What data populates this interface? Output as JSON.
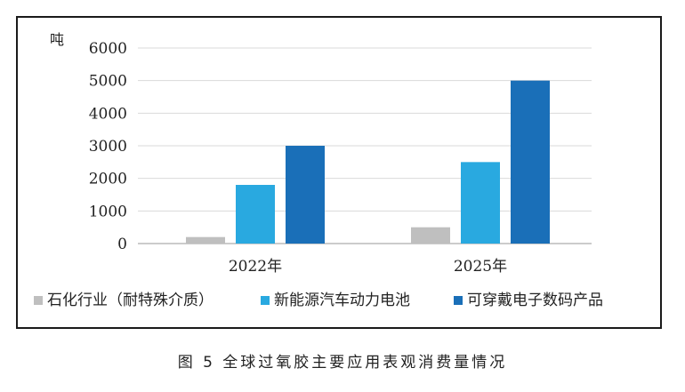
{
  "chart_data": {
    "type": "bar",
    "ylabel": "吨",
    "ylim": [
      0,
      6000
    ],
    "yticks": [
      0,
      1000,
      2000,
      3000,
      4000,
      5000,
      6000
    ],
    "grid": true,
    "legend_position": "bottom",
    "categories": [
      "2022年",
      "2025年"
    ],
    "series": [
      {
        "name": "石化行业（耐特殊介质）",
        "color": "#bfbfbf",
        "values": [
          200,
          500
        ]
      },
      {
        "name": "新能源汽车动力电池",
        "color": "#29a9e0",
        "values": [
          1800,
          2500
        ]
      },
      {
        "name": "可穿戴电子数码产品",
        "color": "#1a6fb8",
        "values": [
          3000,
          5000
        ]
      }
    ]
  },
  "caption": "图 5  全球过氧胶主要应用表观消费量情况"
}
